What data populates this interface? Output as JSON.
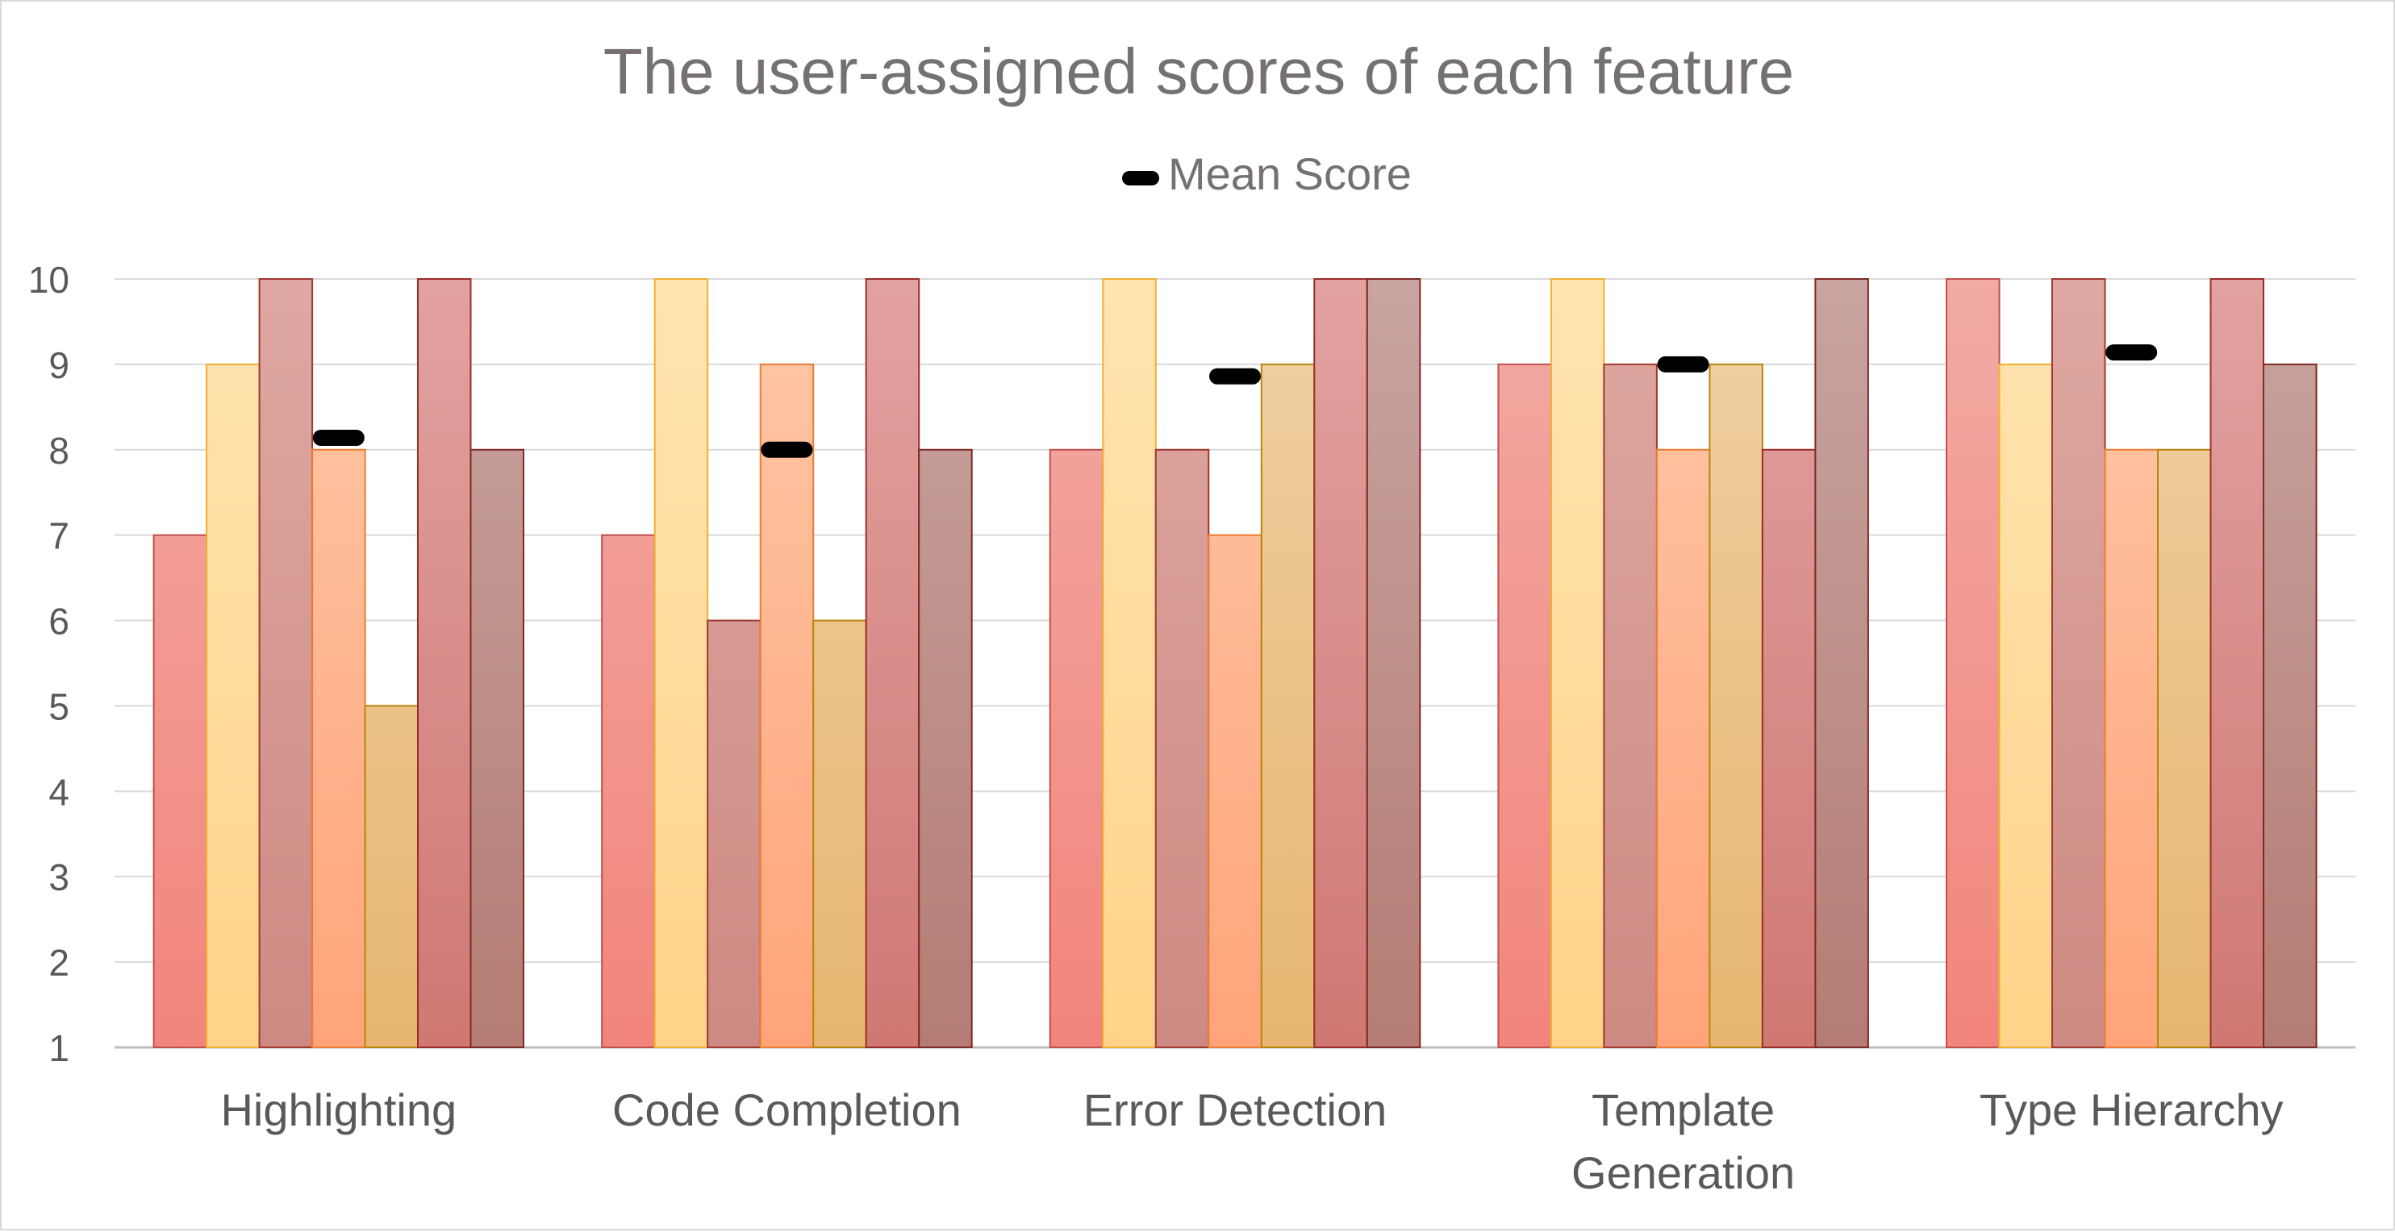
{
  "chart_data": {
    "type": "bar",
    "title": "The user-assigned scores of each feature",
    "xlabel": "",
    "ylabel": "",
    "ylim": [
      1,
      10
    ],
    "yticks": [
      1,
      2,
      3,
      4,
      5,
      6,
      7,
      8,
      9,
      10
    ],
    "grid": true,
    "legend": {
      "placement": "top-center",
      "entries": [
        "Mean Score"
      ]
    },
    "categories": [
      "Highlighting",
      "Code Completion",
      "Error Detection",
      "Template Generation",
      "Type Hierarchy"
    ],
    "category_lines": [
      [
        "Highlighting"
      ],
      [
        "Code Completion"
      ],
      [
        "Error Detection"
      ],
      [
        "Template",
        "Generation"
      ],
      [
        "Type Hierarchy"
      ]
    ],
    "series": [
      {
        "values": [
          7,
          7,
          8,
          9,
          10
        ],
        "color_top": "#f2aaa4",
        "color_bottom": "#f2857b",
        "edge": "#c0504d"
      },
      {
        "values": [
          9,
          10,
          10,
          10,
          9
        ],
        "color_top": "#ffe4b0",
        "color_bottom": "#ffd48a",
        "edge": "#f0b030"
      },
      {
        "values": [
          10,
          6,
          8,
          9,
          10
        ],
        "color_top": "#dfa8a2",
        "color_bottom": "#cc8a82",
        "edge": "#a0382f"
      },
      {
        "values": [
          8,
          9,
          7,
          8,
          8
        ],
        "color_top": "#ffc8a8",
        "color_bottom": "#ffa47a",
        "edge": "#ec7c30"
      },
      {
        "values": [
          5,
          6,
          9,
          9,
          8
        ],
        "color_top": "#f0d0a4",
        "color_bottom": "#e6b670",
        "edge": "#b8860b"
      },
      {
        "values": [
          10,
          10,
          10,
          8,
          10
        ],
        "color_top": "#e2a2a0",
        "color_bottom": "#cf7874",
        "edge": "#9b2d28"
      },
      {
        "values": [
          8,
          8,
          10,
          10,
          9
        ],
        "color_top": "#c9a4a0",
        "color_bottom": "#b47c74",
        "edge": "#7f2a24"
      }
    ],
    "mean_scores": {
      "name": "Mean Score",
      "values": [
        8.14,
        8.0,
        8.86,
        9.0,
        9.14
      ],
      "color": "#000000"
    }
  }
}
